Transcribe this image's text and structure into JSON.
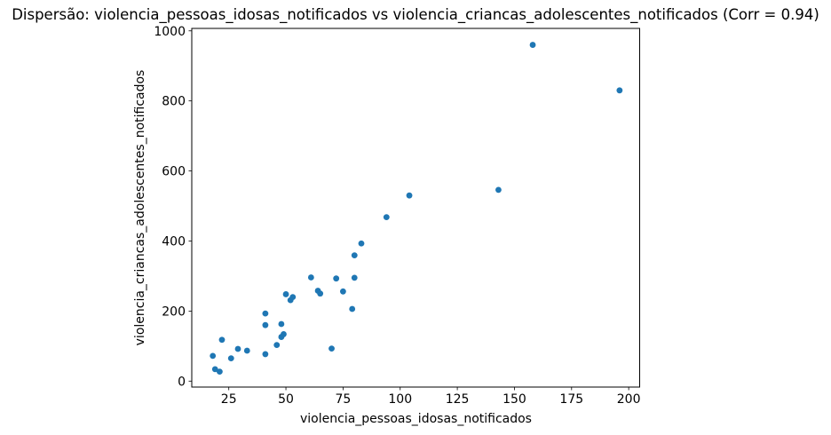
{
  "chart_data": {
    "type": "scatter",
    "title": "Dispersão: violencia_pessoas_idosas_notificados vs violencia_criancas_adolescentes_notificados (Corr = 0.94)",
    "xlabel": "violencia_pessoas_idosas_notificados",
    "ylabel": "violencia_criancas_adolescentes_notificados",
    "corr": 0.94,
    "xticks": [
      25,
      50,
      75,
      100,
      125,
      150,
      175,
      200
    ],
    "yticks": [
      0,
      200,
      400,
      600,
      800,
      1000
    ],
    "xlim": [
      8.8,
      204.8
    ],
    "ylim": [
      -17,
      1007
    ],
    "grid": false,
    "legend": "none",
    "marker_color": "#1f77b4",
    "marker_radius": 3.4,
    "axis_color": "#000000",
    "background_color": "#ffffff",
    "points": [
      {
        "x": 18,
        "y": 72
      },
      {
        "x": 19,
        "y": 34
      },
      {
        "x": 21,
        "y": 27
      },
      {
        "x": 22,
        "y": 118
      },
      {
        "x": 26,
        "y": 65
      },
      {
        "x": 29,
        "y": 92
      },
      {
        "x": 33,
        "y": 87
      },
      {
        "x": 41,
        "y": 77
      },
      {
        "x": 41,
        "y": 160
      },
      {
        "x": 41,
        "y": 193
      },
      {
        "x": 46,
        "y": 103
      },
      {
        "x": 48,
        "y": 126
      },
      {
        "x": 49,
        "y": 134
      },
      {
        "x": 48,
        "y": 163
      },
      {
        "x": 50,
        "y": 248
      },
      {
        "x": 52,
        "y": 231
      },
      {
        "x": 53,
        "y": 240
      },
      {
        "x": 61,
        "y": 296
      },
      {
        "x": 64,
        "y": 258
      },
      {
        "x": 65,
        "y": 250
      },
      {
        "x": 70,
        "y": 93
      },
      {
        "x": 72,
        "y": 293
      },
      {
        "x": 75,
        "y": 256
      },
      {
        "x": 79,
        "y": 206
      },
      {
        "x": 80,
        "y": 295
      },
      {
        "x": 80,
        "y": 359
      },
      {
        "x": 83,
        "y": 393
      },
      {
        "x": 94,
        "y": 468
      },
      {
        "x": 104,
        "y": 530
      },
      {
        "x": 143,
        "y": 546
      },
      {
        "x": 158,
        "y": 960
      },
      {
        "x": 196,
        "y": 830
      }
    ]
  }
}
